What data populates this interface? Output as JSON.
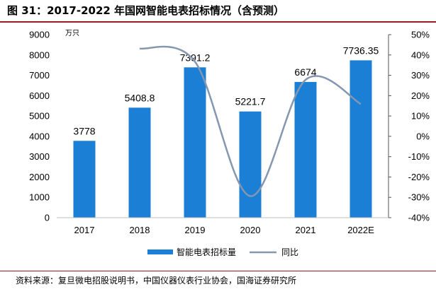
{
  "header": {
    "title": "图 31：2017-2022 年国网智能电表招标情况（含预测）"
  },
  "footer": {
    "source": "资料来源：复旦微电招股说明书，中国仪器仪表行业协会，国海证券研究所"
  },
  "colors": {
    "bar": "#1b7fd6",
    "line": "#8497b0",
    "accent_rule": "#9b1c20"
  },
  "chart_data": {
    "type": "bar",
    "categories": [
      "2017",
      "2018",
      "2019",
      "2020",
      "2021",
      "2022E"
    ],
    "unit": "万只",
    "series": [
      {
        "name": "智能电表招标量",
        "type": "bar",
        "axis": "left",
        "values": [
          3778,
          5408.8,
          7391.2,
          5221.7,
          6674,
          7736.35
        ],
        "labels": [
          "3778",
          "5408.8",
          "7391.2",
          "5221.7",
          "6674",
          "7736.35"
        ]
      },
      {
        "name": "同比",
        "type": "line",
        "axis": "right",
        "values": [
          null,
          43.2,
          36.7,
          -29.4,
          27.8,
          15.9
        ]
      }
    ],
    "ylim_left": [
      0,
      9000
    ],
    "yticks_left": [
      "0",
      "1000",
      "2000",
      "3000",
      "4000",
      "5000",
      "6000",
      "7000",
      "8000",
      "9000"
    ],
    "ylim_right": [
      -40,
      50
    ],
    "yticks_right": [
      "-40%",
      "-30%",
      "-20%",
      "-10%",
      "0%",
      "10%",
      "20%",
      "30%",
      "40%",
      "50%"
    ],
    "legend_position": "bottom",
    "grid": false
  }
}
